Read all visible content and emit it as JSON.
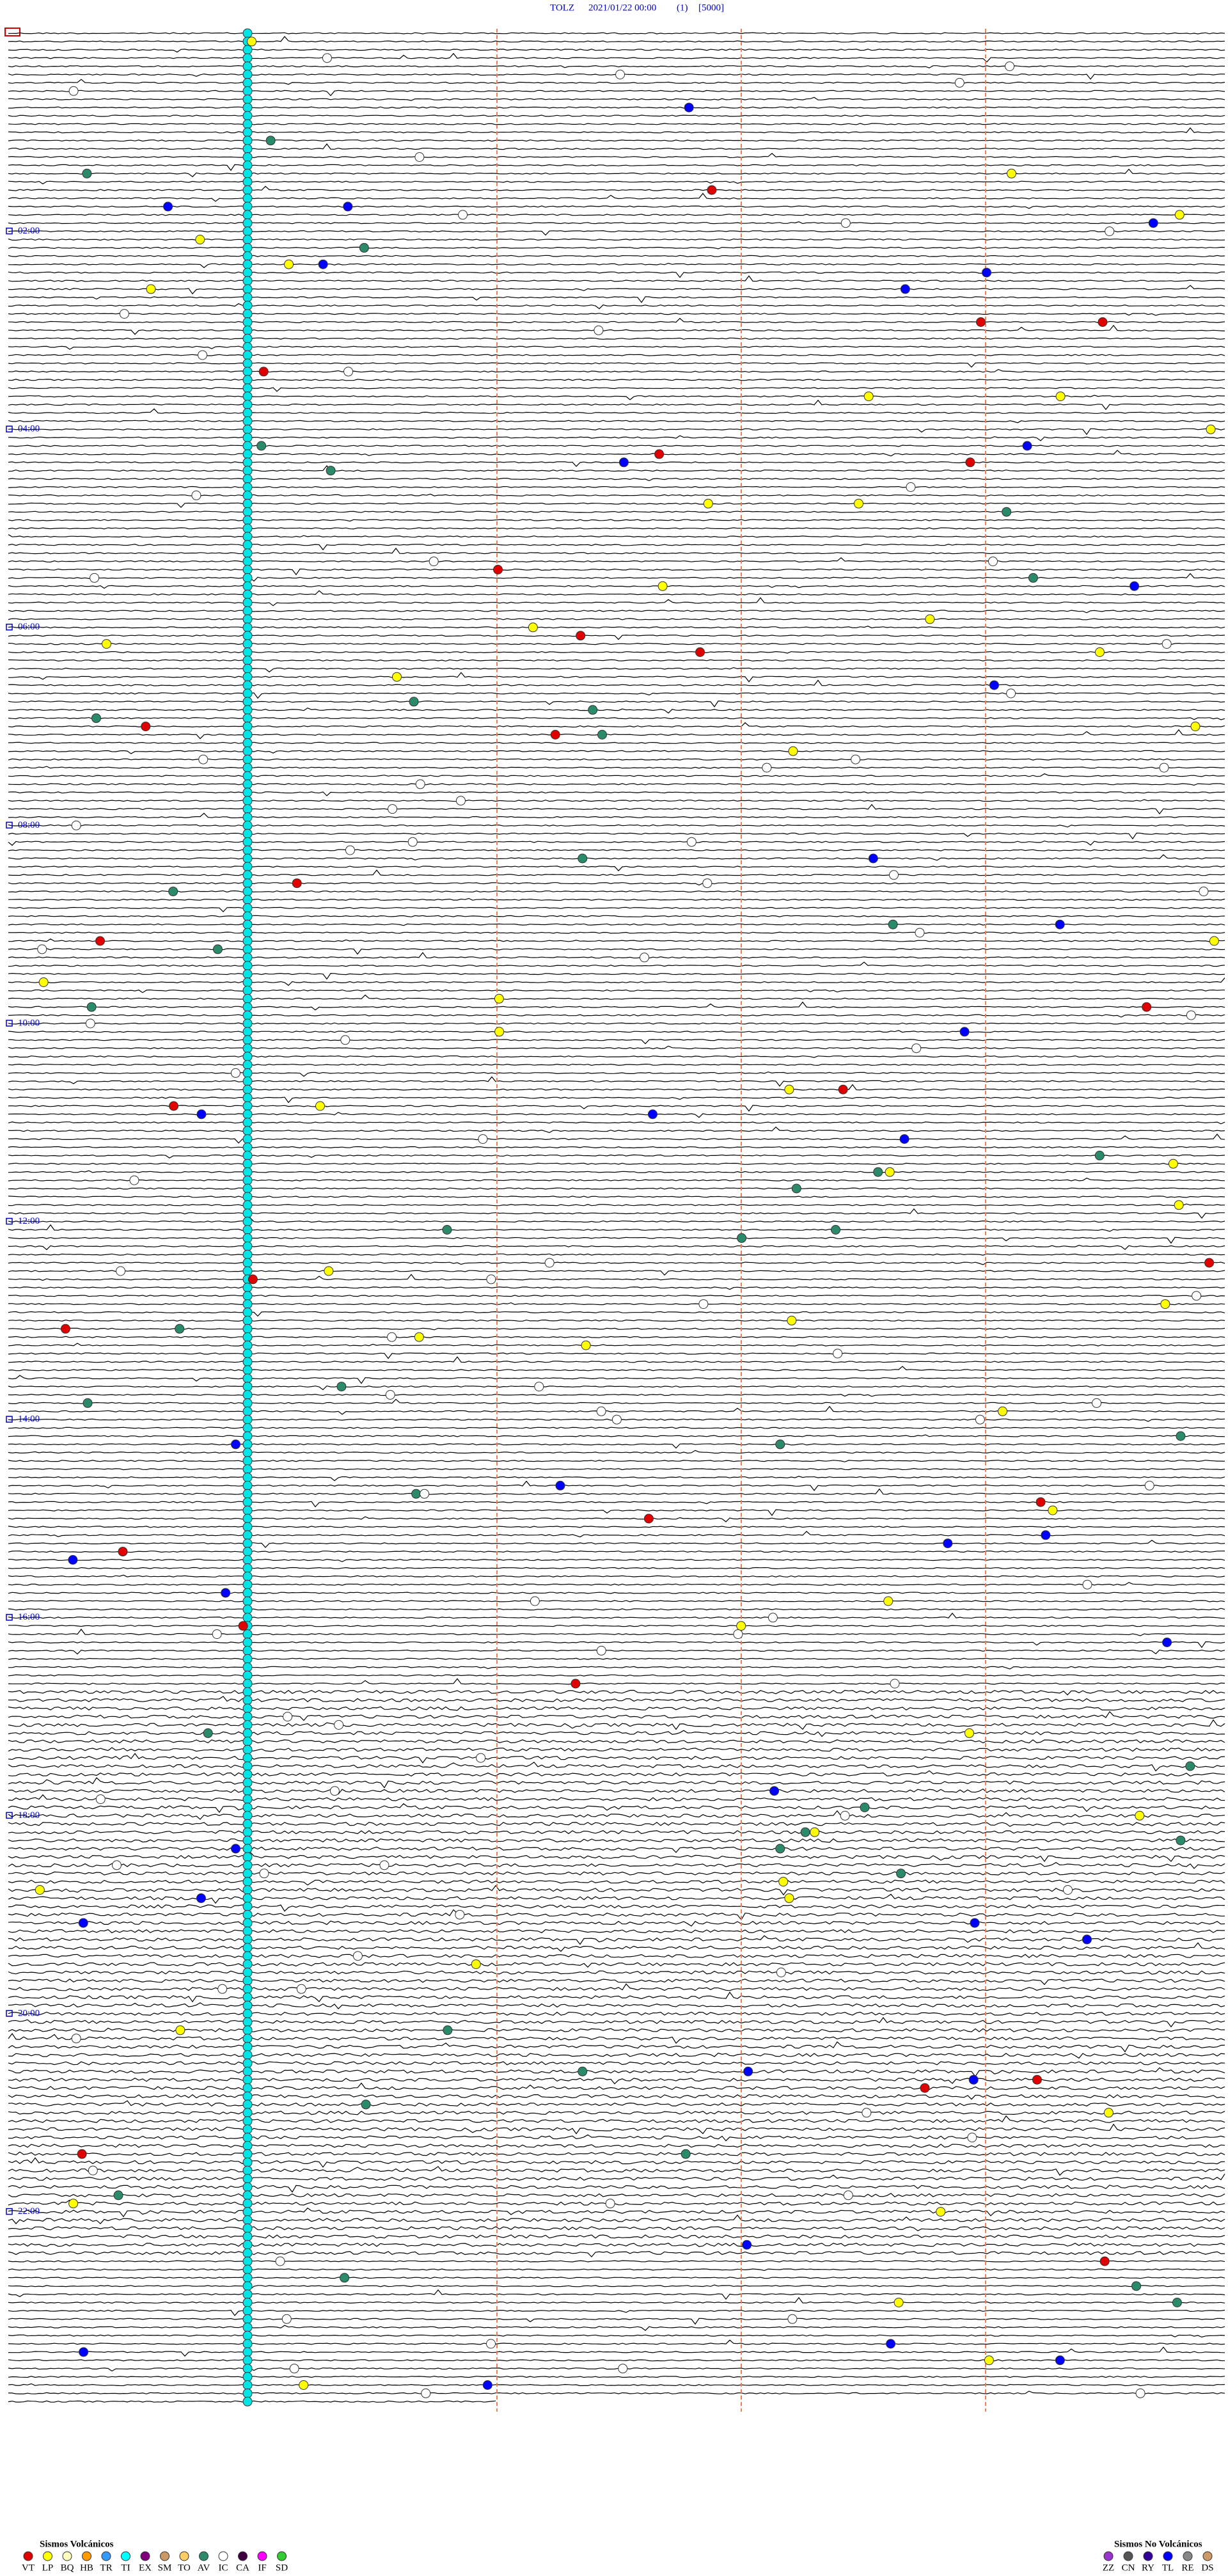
{
  "header": {
    "station": "TOLZ",
    "datetime": "2021/01/22 00:00",
    "channel": "(1)",
    "scale": "[5000]"
  },
  "hour_labels": [
    "02:00",
    "04:00",
    "06:00",
    "08:00",
    "10:00",
    "12:00",
    "14:00",
    "16:00",
    "18:00",
    "20:00",
    "22:00"
  ],
  "legend": {
    "volcanic": {
      "title": "Sismos Volcánicos",
      "items": [
        {
          "code": "VT",
          "color": "#e00000"
        },
        {
          "code": "LP",
          "color": "#ffff00"
        },
        {
          "code": "BQ",
          "color": "#ffffc0"
        },
        {
          "code": "HB",
          "color": "#ff9900"
        },
        {
          "code": "TR",
          "color": "#3399ff"
        },
        {
          "code": "TI",
          "color": "#00ffff"
        },
        {
          "code": "EX",
          "color": "#800080"
        },
        {
          "code": "SM",
          "color": "#cc9966"
        },
        {
          "code": "TO",
          "color": "#ffcc66"
        },
        {
          "code": "AV",
          "color": "#2a8a6a"
        },
        {
          "code": "IC",
          "color": "#ffffff"
        },
        {
          "code": "CA",
          "color": "#400040"
        },
        {
          "code": "IF",
          "color": "#ff00ff"
        },
        {
          "code": "SD",
          "color": "#33cc33"
        }
      ]
    },
    "non_volcanic": {
      "title": "Sismos No Volcánicos",
      "items": [
        {
          "code": "ZZ",
          "color": "#9933cc"
        },
        {
          "code": "CN",
          "color": "#555555"
        },
        {
          "code": "RY",
          "color": "#330099"
        },
        {
          "code": "TL",
          "color": "#0000ff"
        },
        {
          "code": "RE",
          "color": "#888888"
        },
        {
          "code": "DS",
          "color": "#cc9966"
        }
      ]
    }
  }
}
